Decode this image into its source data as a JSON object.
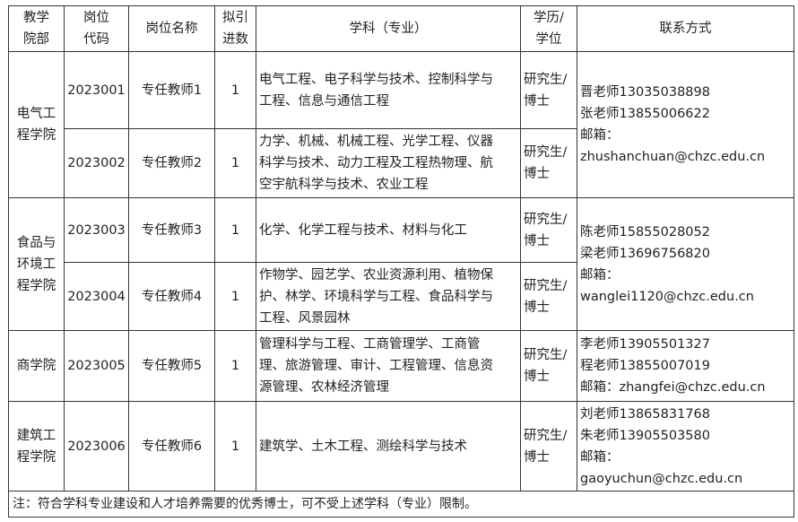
{
  "headers": [
    {
      "lines": [
        "教学",
        "院部"
      ]
    },
    {
      "lines": [
        "岗位",
        "代码"
      ]
    },
    {
      "lines": [
        "岗位名称"
      ]
    },
    {
      "lines": [
        "拟引",
        "进数"
      ]
    },
    {
      "lines": [
        "学科（专业）"
      ]
    },
    {
      "lines": [
        "学历/",
        "学位"
      ]
    },
    {
      "lines": [
        "联系方式"
      ]
    }
  ],
  "departments": [
    {
      "name_lines": [
        "电气工",
        "程学院"
      ],
      "contact_lines": [
        "晋老师13035038898",
        "张老师13855006622",
        "邮箱：",
        "zhushanchuan@chzc.edu.cn"
      ],
      "rows": [
        {
          "code": "2023001",
          "title": "专任教师1",
          "count": "1",
          "subject_lines": [
            "电气工程、电子科学与技术、控制科学与",
            "工程、信息与通信工程"
          ],
          "degree_lines": [
            "研究生/",
            "博士"
          ]
        },
        {
          "code": "2023002",
          "title": "专任教师2",
          "count": "1",
          "subject_lines": [
            "力学、机械、机械工程、光学工程、仪器",
            "科学与技术、动力工程及工程热物理、航",
            "空宇航科学与技术、农业工程"
          ],
          "degree_lines": [
            "研究生/",
            "博士"
          ]
        }
      ]
    },
    {
      "name_lines": [
        "食品与",
        "环境工",
        "程学院"
      ],
      "contact_lines": [
        "陈老师15855028052",
        "梁老师13696756820",
        "邮箱：",
        "wanglei1120@chzc.edu.cn"
      ],
      "rows": [
        {
          "code": "2023003",
          "title": "专任教师3",
          "count": "1",
          "subject_lines": [
            "化学、化学工程与技术、材料与化工"
          ],
          "degree_lines": [
            "研究生/",
            "博士"
          ]
        },
        {
          "code": "2023004",
          "title": "专任教师4",
          "count": "1",
          "subject_lines": [
            "作物学、园艺学、农业资源利用、植物保",
            "护、林学、环境科学与工程、食品科学与",
            "工程、风景园林"
          ],
          "degree_lines": [
            "研究生/",
            "博士"
          ]
        }
      ]
    },
    {
      "name_lines": [
        "商学院"
      ],
      "contact_lines": [
        "李老师13905501327",
        "程老师13855007019",
        "邮箱：zhangfei@chzc.edu.cn"
      ],
      "rows": [
        {
          "code": "2023005",
          "title": "专任教师5",
          "count": "1",
          "subject_lines": [
            "管理科学与工程、工商管理学、工商管",
            "理、旅游管理、审计、工程管理、信息资",
            "源管理、农林经济管理"
          ],
          "degree_lines": [
            "研究生/",
            "博士"
          ]
        }
      ]
    },
    {
      "name_lines": [
        "建筑工",
        "程学院"
      ],
      "contact_lines": [
        "刘老师13865831768",
        "朱老师13905503580",
        "邮箱：",
        "gaoyuchun@chzc.edu.cn"
      ],
      "rows": [
        {
          "code": "2023006",
          "title": "专任教师6",
          "count": "1",
          "subject_lines": [
            "建筑学、土木工程、测绘科学与技术"
          ],
          "degree_lines": [
            "研究生/",
            "博士"
          ]
        }
      ]
    }
  ],
  "note": "注：符合学科专业建设和人才培养需要的优秀博士，可不受上述学科（专业）限制。"
}
